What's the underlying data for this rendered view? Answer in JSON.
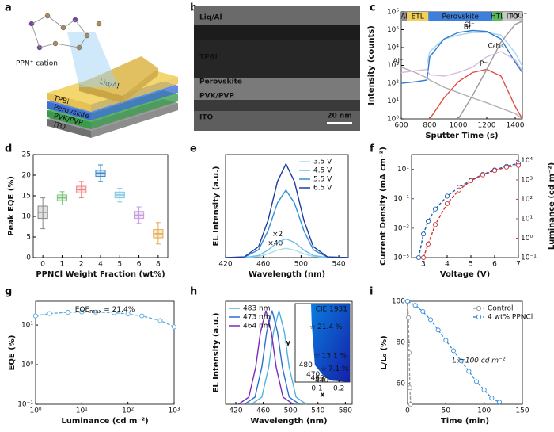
{
  "figure": {
    "panel_a": {
      "letter": "a",
      "cation": "PPN⁺ cation",
      "layers": [
        "Liq/Al",
        "TPBi",
        "Perovskite",
        "PVK/PVP",
        "ITO"
      ]
    },
    "panel_b": {
      "letter": "b",
      "layers": [
        "Liq/Al",
        "TPBi",
        "Perovskite",
        "PVK/PVP",
        "ITO"
      ],
      "scale_bar": "20 nm"
    }
  },
  "chart_data": [
    {
      "type": "line",
      "panel": "c",
      "xlabel": "Sputter Time (s)",
      "ylabel": "Intensity (counts)",
      "log_y": true,
      "legend": "inline",
      "x": [
        600,
        700,
        780,
        800,
        900,
        1000,
        1100,
        1200,
        1300,
        1400,
        1450
      ],
      "xlim": [
        600,
        1450
      ],
      "xticks": [
        600,
        800,
        1000,
        1200,
        1400
      ],
      "ylim": [
        1,
        1000000
      ],
      "yticks": [
        {
          "value": 1,
          "label": "10⁰"
        },
        {
          "value": 10,
          "label": "10¹"
        },
        {
          "value": 100,
          "label": "10²"
        },
        {
          "value": 1000,
          "label": "10³"
        },
        {
          "value": 10000,
          "label": "10⁴"
        },
        {
          "value": 100000,
          "label": "10⁵"
        },
        {
          "value": 1000000,
          "label": "10⁶"
        }
      ],
      "regions": {
        "labels": [
          "Al",
          "ETL",
          "Perovskite",
          "HTL",
          "ITO"
        ],
        "bounds": [
          600,
          640,
          790,
          1240,
          1310,
          1450
        ],
        "colors": [
          "#8c8c8c",
          "#f2cf5b",
          "#3d7fd9",
          "#5cb85c",
          "#c8c8c8"
        ]
      },
      "series": [
        {
          "name": "Al⁻",
          "color": "#b0b0b0",
          "values": [
            800,
            400,
            200,
            150,
            60,
            30,
            15,
            8,
            4,
            2,
            1
          ]
        },
        {
          "name": "Br⁻",
          "color": "#a8d4f0",
          "values": [
            null,
            null,
            1000,
            6000,
            30000,
            50000,
            70000,
            70000,
            50000,
            5000,
            900
          ]
        },
        {
          "name": "Cl⁻",
          "color": "#2b7bd0",
          "values": [
            100,
            120,
            150,
            3000,
            30000,
            70000,
            90000,
            80000,
            30000,
            1500,
            400
          ]
        },
        {
          "name": "C₆H₅⁻",
          "color": "#d7bde0",
          "values": [
            400,
            500,
            600,
            300,
            250,
            400,
            800,
            3000,
            6000,
            2000,
            500
          ]
        },
        {
          "name": "P⁻",
          "color": "#e04a40",
          "values": [
            null,
            null,
            null,
            1,
            15,
            120,
            400,
            600,
            250,
            5,
            1
          ]
        },
        {
          "name": "InO⁻",
          "color": "#9a9a9a",
          "values": [
            null,
            null,
            null,
            null,
            null,
            1,
            20,
            600,
            20000,
            200000,
            300000
          ]
        }
      ]
    },
    {
      "type": "box",
      "panel": "d",
      "xlabel": "PPNCl Weight Fraction (wt%)",
      "ylabel": "Peak EQE (%)",
      "categories": [
        "0",
        "1",
        "2",
        "4",
        "5",
        "6",
        "8"
      ],
      "median": [
        11,
        14.5,
        16.5,
        20.5,
        15.2,
        10.3,
        5.8
      ],
      "q1": [
        9.5,
        13.8,
        15.7,
        19.7,
        14.5,
        9.5,
        4.8
      ],
      "q3": [
        12.5,
        15.2,
        17.3,
        21.2,
        15.9,
        11.2,
        6.8
      ],
      "min": [
        7,
        12.8,
        14.5,
        18.5,
        13.5,
        8.3,
        3.3
      ],
      "max": [
        14.5,
        16,
        18.5,
        22.5,
        16.8,
        12.3,
        8.5
      ],
      "colors": [
        "#888888",
        "#7cc47c",
        "#f08080",
        "#3a86c8",
        "#7ec8e3",
        "#c49be0",
        "#e6a850"
      ],
      "ylim": [
        0,
        25
      ],
      "yticks": [
        0,
        5,
        10,
        15,
        20,
        25
      ]
    },
    {
      "type": "line",
      "panel": "e",
      "xlabel": "Wavelength (nm)",
      "ylabel": "EL Intensity (a.u.)",
      "legend": "upper right",
      "x": [
        420,
        440,
        455,
        465,
        475,
        484,
        493,
        503,
        513,
        528,
        550
      ],
      "xlim": [
        420,
        550
      ],
      "xticks": [
        420,
        460,
        500,
        540
      ],
      "ylim": [
        0,
        110
      ],
      "series": [
        {
          "name": "3.5 V",
          "color": "#a9dcf0",
          "scale_label": "×40",
          "values": [
            0,
            0.1,
            1.2,
            4,
            8.1,
            10,
            8.1,
            4,
            1.2,
            0.1,
            0
          ]
        },
        {
          "name": "4.5 V",
          "color": "#6fc0e8",
          "scale_label": "×2",
          "values": [
            0,
            0.1,
            2.3,
            8,
            16.3,
            20,
            16.3,
            8,
            2.3,
            0.1,
            0
          ]
        },
        {
          "name": "5.5 V",
          "color": "#2f8fd6",
          "values": [
            0,
            0.5,
            8.4,
            28.7,
            58.5,
            72,
            58.5,
            28.7,
            8.4,
            0.5,
            0
          ]
        },
        {
          "name": "6.5 V",
          "color": "#1f3c9c",
          "values": [
            0,
            0.72,
            11.7,
            39.8,
            81.3,
            100,
            81.3,
            39.8,
            11.7,
            0.72,
            0
          ]
        }
      ]
    },
    {
      "type": "line",
      "panel": "f",
      "xlabel": "Voltage (V)",
      "ylabel": "Current Density (mA cm⁻²)",
      "y2label": "Luminance (cd m⁻²)",
      "log_y": true,
      "markers": true,
      "y_color": "#1f5fb4",
      "y2_color": "#d33333",
      "x": [
        2.8,
        3,
        3.2,
        3.5,
        4,
        4.5,
        5,
        5.5,
        6,
        6.5,
        7
      ],
      "xlim": [
        2.5,
        7
      ],
      "xticks": [
        3,
        4,
        5,
        6,
        7
      ],
      "ylim": [
        1e-05,
        100
      ],
      "yticks": [
        {
          "value": 1e-05,
          "label": "10⁻⁵"
        },
        {
          "value": 0.001,
          "label": "10⁻³"
        },
        {
          "value": 0.1,
          "label": "10⁻¹"
        },
        {
          "value": 10,
          "label": "10¹"
        }
      ],
      "y2lim": [
        0.1,
        20000
      ],
      "y2ticks": [
        {
          "value": 0.1,
          "label": "10⁻¹"
        },
        {
          "value": 1,
          "label": "10⁰"
        },
        {
          "value": 10,
          "label": "10¹"
        },
        {
          "value": 100,
          "label": "10²"
        },
        {
          "value": 1000,
          "label": "10³"
        },
        {
          "value": 10000,
          "label": "10⁴"
        }
      ],
      "series": [
        {
          "color": "#1f5fb4",
          "values": [
            1e-05,
            0.0004,
            0.003,
            0.02,
            0.15,
            0.6,
            1.8,
            4.5,
            9,
            16,
            25
          ]
        },
        {
          "color": "#d33333",
          "axis": "y2",
          "values": [
            null,
            0.1,
            0.5,
            5,
            60,
            300,
            900,
            1800,
            3000,
            4500,
            5500
          ]
        }
      ]
    },
    {
      "type": "line",
      "panel": "g",
      "xlabel": "Luminance (cd m⁻²)",
      "ylabel": "EQE (%)",
      "log_x": true,
      "log_y": true,
      "markers": true,
      "annotation": {
        "base": "EQE",
        "sub": "max",
        "rest": " = 21.4%"
      },
      "x": [
        1,
        2,
        5,
        10,
        20,
        50,
        100,
        200,
        500,
        1000
      ],
      "xlim": [
        1,
        1000
      ],
      "xticks": [
        {
          "value": 1,
          "label": "10⁰"
        },
        {
          "value": 10,
          "label": "10¹"
        },
        {
          "value": 100,
          "label": "10²"
        },
        {
          "value": 1000,
          "label": "10³"
        }
      ],
      "ylim": [
        0.1,
        40
      ],
      "yticks": [
        {
          "value": 0.1,
          "label": "10⁻¹"
        },
        {
          "value": 1,
          "label": "10⁰"
        },
        {
          "value": 10,
          "label": "10¹"
        }
      ],
      "series": [
        {
          "color": "#5aaedc",
          "values": [
            17,
            19.5,
            21,
            21.4,
            21.2,
            20.5,
            19,
            17,
            13,
            9
          ]
        }
      ]
    },
    {
      "type": "line",
      "panel": "h",
      "xlabel": "Wavelength (nm)",
      "ylabel": "EL Intensity (a.u.)",
      "legend": "upper left",
      "xlim": [
        405,
        590
      ],
      "xticks": [
        420,
        460,
        500,
        540,
        580
      ],
      "ylim": [
        0,
        110
      ],
      "series": [
        {
          "name": "483 nm",
          "color": "#4fb0e0",
          "x": [
            443,
            458,
            468,
            475,
            483,
            491,
            498,
            508,
            523
          ],
          "values": [
            0.1,
            7.6,
            39.5,
            76.8,
            100,
            76.8,
            39.5,
            7.6,
            0.1
          ]
        },
        {
          "name": "473 nm",
          "color": "#2a6fd0",
          "x": [
            433,
            448,
            458,
            465,
            473,
            481,
            488,
            498,
            513
          ],
          "values": [
            0.1,
            7.6,
            39.5,
            76.8,
            100,
            76.8,
            39.5,
            7.6,
            0.1
          ]
        },
        {
          "name": "464 nm",
          "color": "#7a2ab8",
          "x": [
            424,
            439,
            449,
            456,
            464,
            472,
            479,
            489,
            504
          ],
          "values": [
            0.1,
            7.6,
            39.5,
            76.8,
            100,
            76.8,
            39.5,
            7.6,
            0.1
          ]
        }
      ],
      "inset": {
        "title": "CIE 1931",
        "xlabel": "x",
        "ylabel": "y",
        "xlim": [
          0,
          0.25
        ],
        "ylim": [
          0,
          0.6
        ],
        "xticks": [
          0.1,
          0.2
        ],
        "x": [
          0.08,
          0.1,
          0.13
        ],
        "y": [
          0.42,
          0.2,
          0.1
        ],
        "values": [
          21.4,
          13.1,
          7.1
        ],
        "value_labels": [
          "21.4 %",
          "13.1 %",
          "7.1 %"
        ],
        "locus": {
          "labels": [
            "480",
            "470",
            "460",
            "440"
          ],
          "x": [
            0.09,
            0.124,
            0.144,
            0.164
          ],
          "y": [
            0.13,
            0.058,
            0.03,
            0.011
          ]
        }
      }
    },
    {
      "type": "line",
      "panel": "i",
      "xlabel": "Time (min)",
      "ylabel": "L/L₀ (%)",
      "legend": "upper right",
      "markers": true,
      "annotation_text": "L₀=100 cd m⁻²",
      "xlim": [
        0,
        150
      ],
      "xticks": [
        0,
        50,
        100,
        150
      ],
      "ylim": [
        50,
        100
      ],
      "yticks": [
        60,
        80,
        100
      ],
      "series": [
        {
          "name": "Control",
          "color": "#9a9a9a",
          "x": [
            0,
            1,
            2,
            3,
            4
          ],
          "values": [
            100,
            92,
            75,
            58,
            50
          ]
        },
        {
          "name": "4 wt% PPNCl",
          "color": "#3a90d8",
          "x": [
            0,
            10,
            20,
            30,
            40,
            50,
            60,
            70,
            80,
            90,
            100,
            110,
            120
          ],
          "values": [
            100,
            98,
            95,
            91,
            86,
            81,
            76,
            71,
            66,
            61,
            57,
            53,
            51
          ]
        }
      ]
    }
  ]
}
